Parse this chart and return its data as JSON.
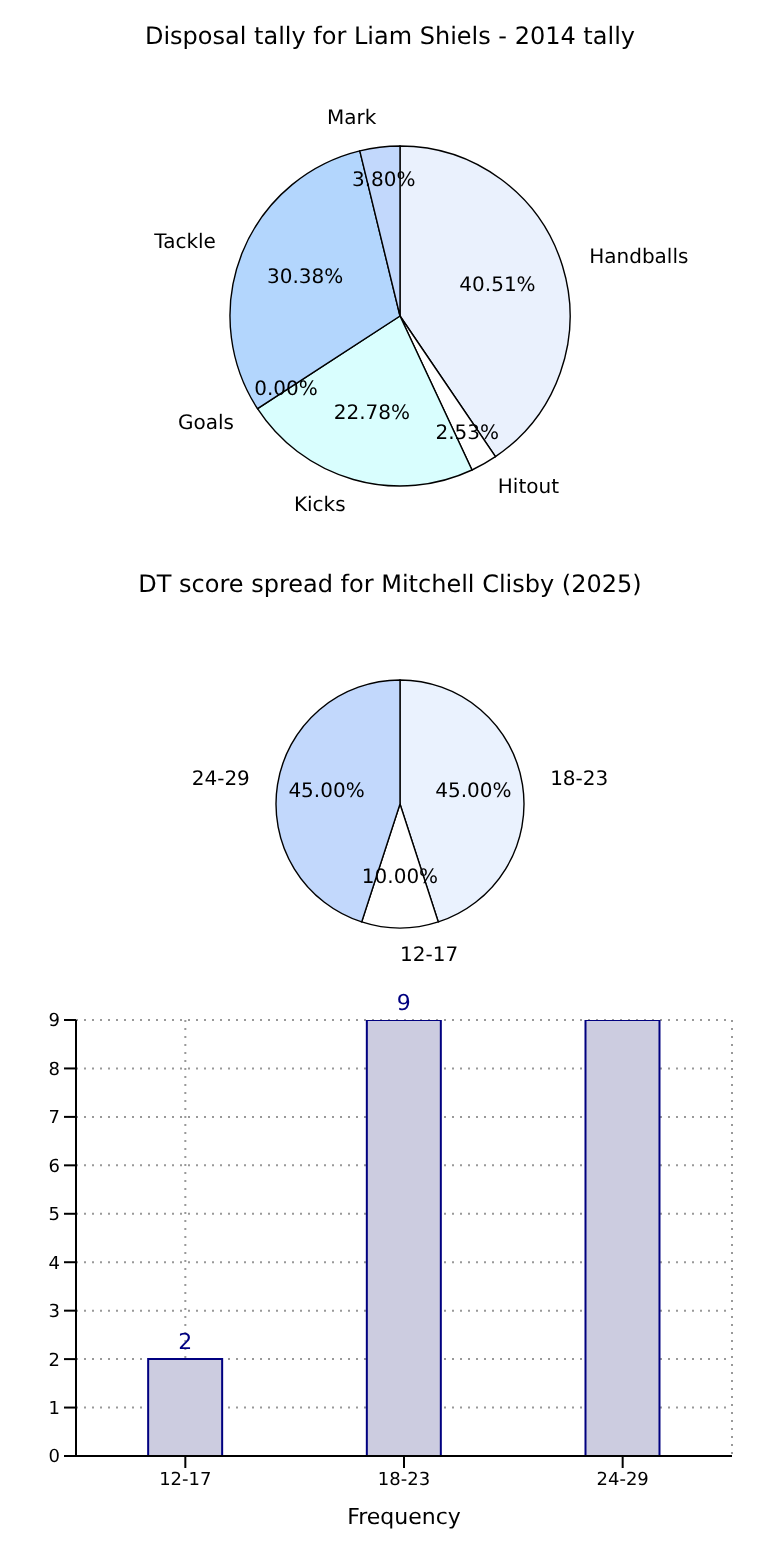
{
  "chart_data": [
    {
      "type": "pie",
      "title": "Disposal tally for Liam Shiels - 2014 tally",
      "categories": [
        "Handballs",
        "Hitout",
        "Kicks",
        "Goals",
        "Tackle",
        "Mark"
      ],
      "values": [
        40.51,
        2.53,
        22.78,
        0.0,
        30.38,
        3.8
      ],
      "colors": [
        "#eaf1fd",
        "#ffffff",
        "#d9fefe",
        "#c8c8e0",
        "#b3d6fd",
        "#c2d8fc"
      ],
      "value_labels": [
        "40.51%",
        "2.53%",
        "22.78%",
        "0.00%",
        "30.38%",
        "3.80%"
      ]
    },
    {
      "type": "pie",
      "title": "DT score spread for Mitchell Clisby (2025)",
      "categories": [
        "18-23",
        "12-17",
        "24-29"
      ],
      "values": [
        45.0,
        10.0,
        45.0
      ],
      "colors": [
        "#eaf2fe",
        "#ffffff",
        "#c2d8fc"
      ],
      "value_labels": [
        "45.00%",
        "10.00%",
        "45.00%"
      ]
    },
    {
      "type": "bar",
      "xlabel": "Frequency",
      "categories": [
        "12-17",
        "18-23",
        "24-29"
      ],
      "values": [
        2,
        9,
        9
      ],
      "color": "#cccce0",
      "value_labels": [
        "2",
        "9",
        null
      ],
      "ylim": [
        0,
        9
      ],
      "yticks": [
        0,
        1,
        2,
        3,
        4,
        5,
        6,
        7,
        8,
        9
      ],
      "grid": true
    }
  ]
}
